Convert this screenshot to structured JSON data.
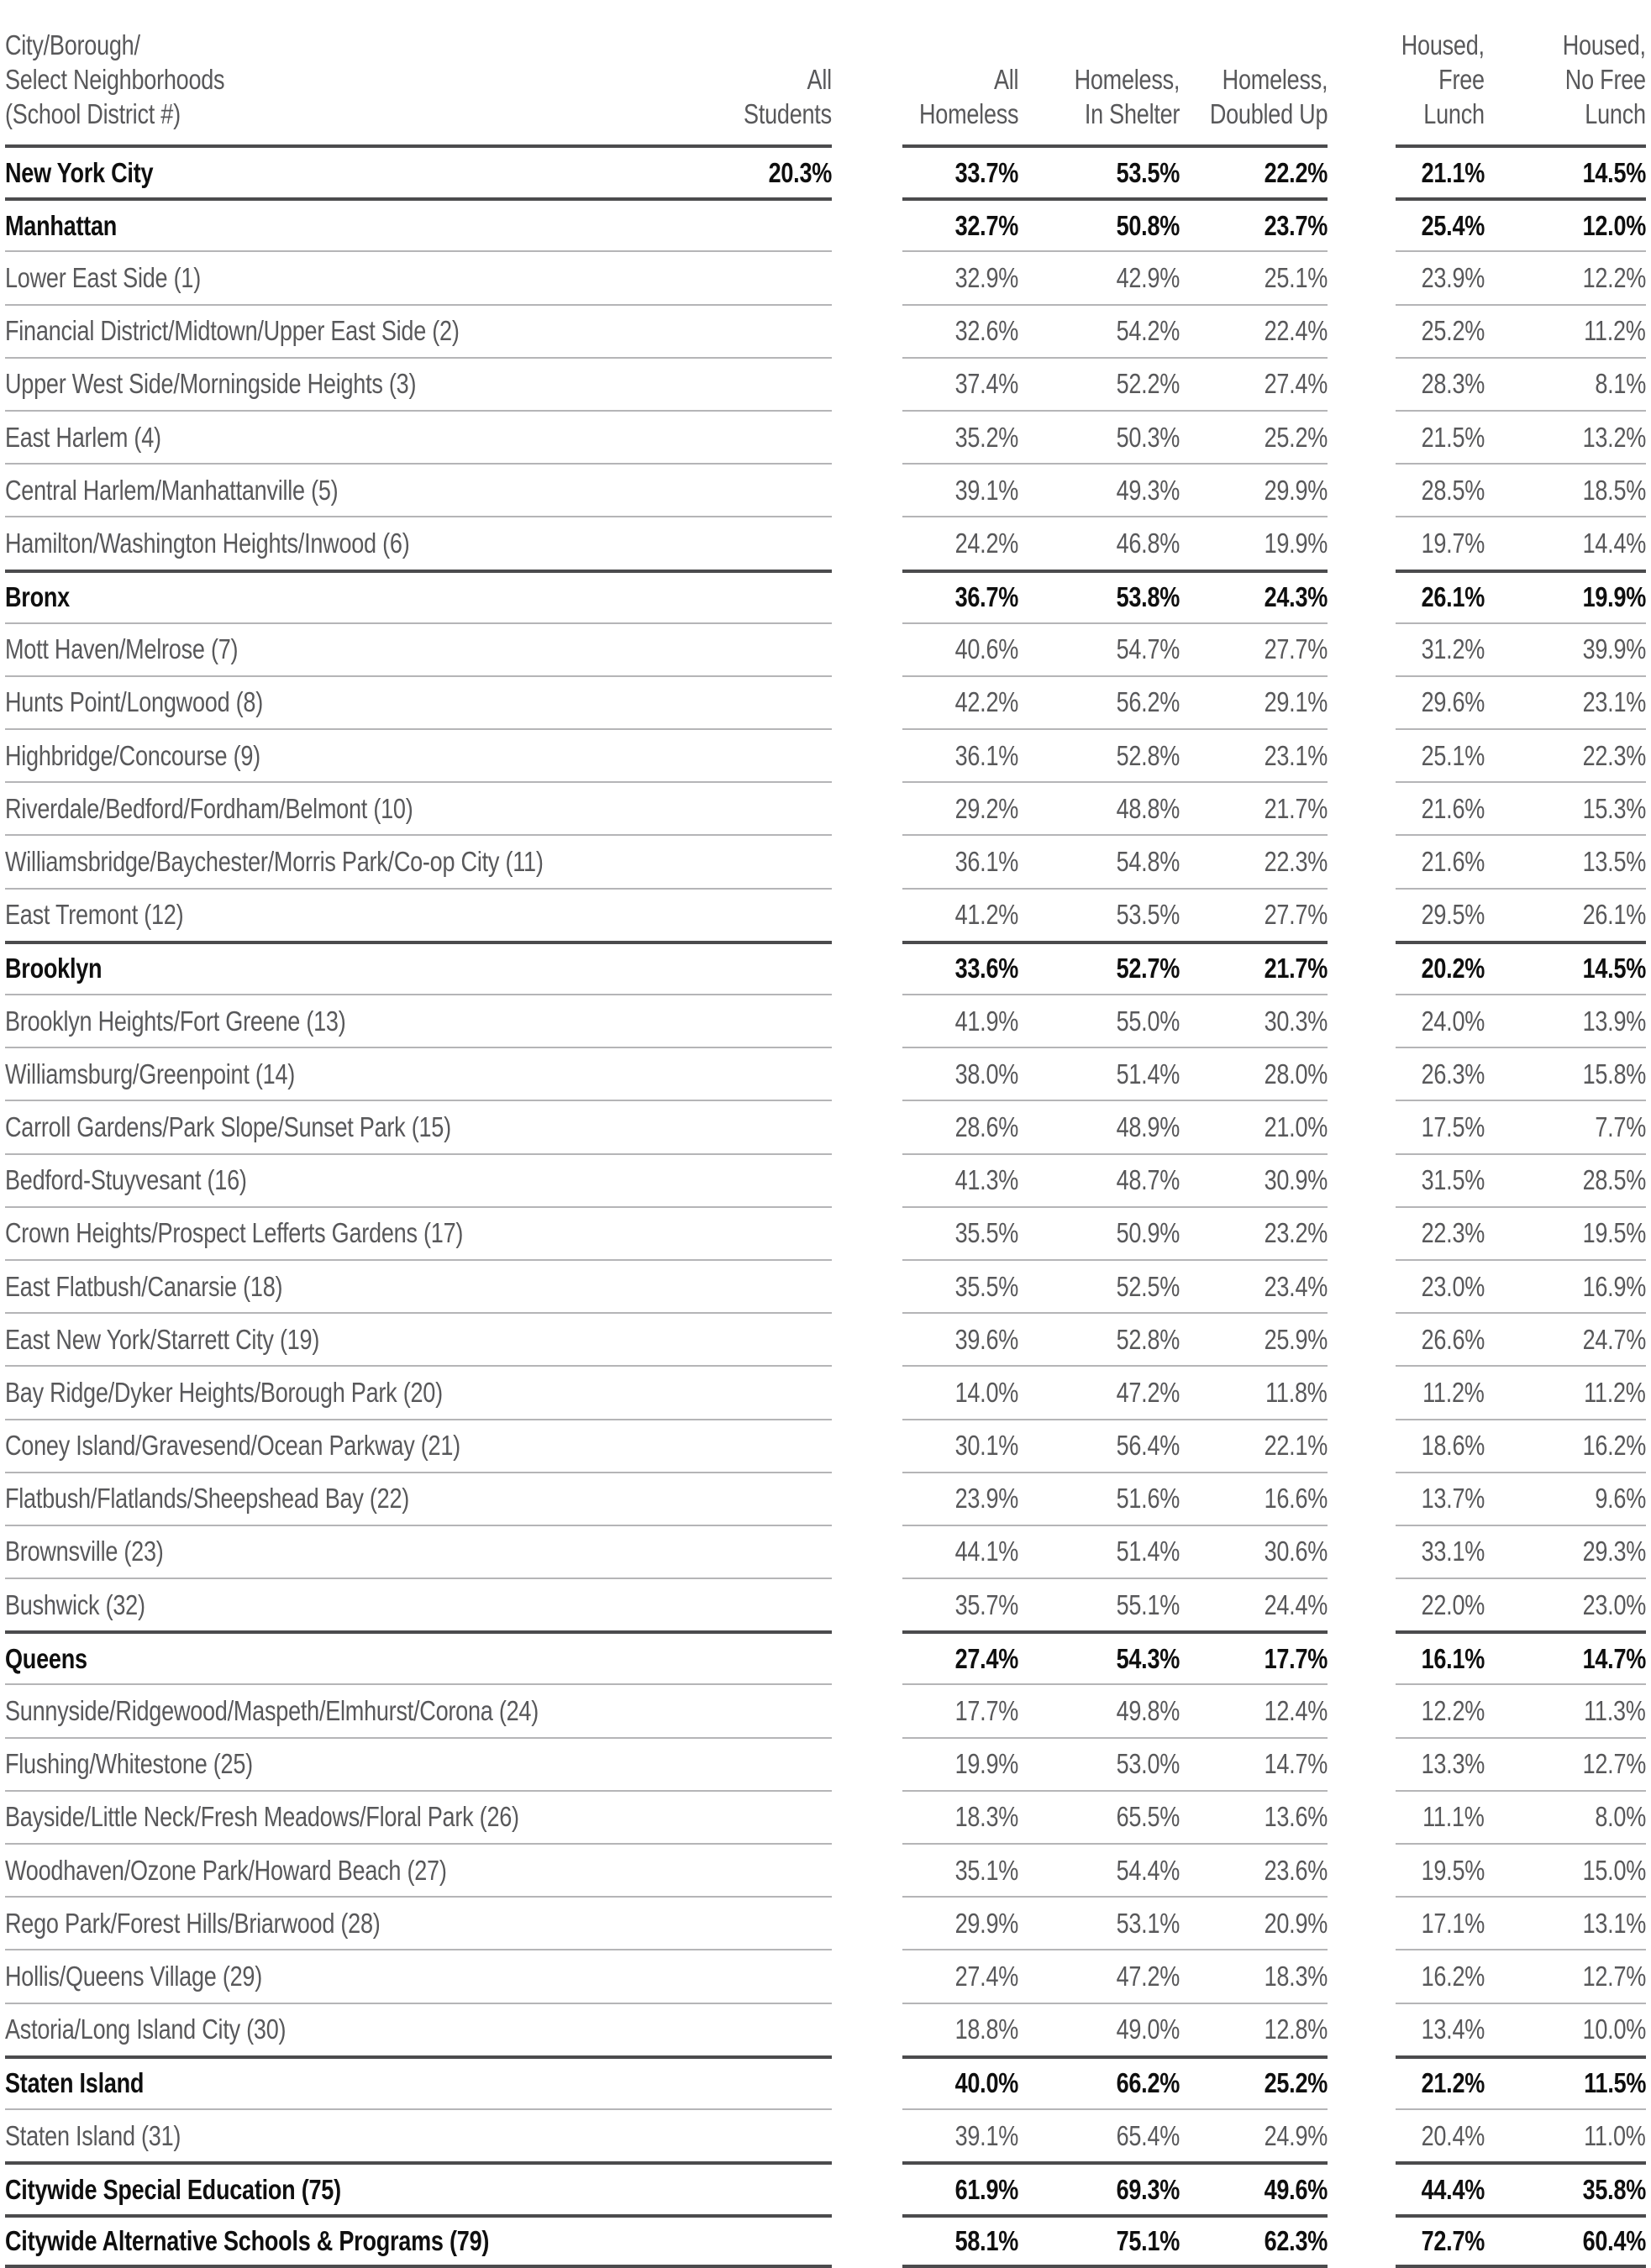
{
  "chart_data": {
    "type": "table",
    "header": {
      "label": "City/Borough/\nSelect Neighborhoods\n(School District #)",
      "all_students": "All\nStudents",
      "all_homeless": "All\nHomeless",
      "in_shelter": "Homeless,\nIn Shelter",
      "doubled_up": "Homeless,\nDoubled Up",
      "free_lunch": "Housed,\nFree\nLunch",
      "no_free_lunch": "Housed,\nNo Free\nLunch"
    },
    "columns": [
      "All Students",
      "All Homeless",
      "Homeless, In Shelter",
      "Homeless, Doubled Up",
      "Housed, Free Lunch",
      "Housed, No Free Lunch"
    ],
    "rows": [
      {
        "label": "New York City",
        "bold": true,
        "values": [
          "20.3%",
          "33.7%",
          "53.5%",
          "22.2%",
          "21.1%",
          "14.5%"
        ]
      },
      {
        "label": "Manhattan",
        "bold": true,
        "values": [
          "",
          "32.7%",
          "50.8%",
          "23.7%",
          "25.4%",
          "12.0%"
        ]
      },
      {
        "label": "Lower East Side (1)",
        "bold": false,
        "values": [
          "",
          "32.9%",
          "42.9%",
          "25.1%",
          "23.9%",
          "12.2%"
        ]
      },
      {
        "label": "Financial District/Midtown/Upper East Side (2)",
        "bold": false,
        "values": [
          "",
          "32.6%",
          "54.2%",
          "22.4%",
          "25.2%",
          "11.2%"
        ]
      },
      {
        "label": "Upper West Side/Morningside Heights (3)",
        "bold": false,
        "values": [
          "",
          "37.4%",
          "52.2%",
          "27.4%",
          "28.3%",
          "8.1%"
        ]
      },
      {
        "label": "East Harlem (4)",
        "bold": false,
        "values": [
          "",
          "35.2%",
          "50.3%",
          "25.2%",
          "21.5%",
          "13.2%"
        ]
      },
      {
        "label": "Central Harlem/Manhattanville (5)",
        "bold": false,
        "values": [
          "",
          "39.1%",
          "49.3%",
          "29.9%",
          "28.5%",
          "18.5%"
        ]
      },
      {
        "label": "Hamilton/Washington Heights/Inwood (6)",
        "bold": false,
        "values": [
          "",
          "24.2%",
          "46.8%",
          "19.9%",
          "19.7%",
          "14.4%"
        ]
      },
      {
        "label": "Bronx",
        "bold": true,
        "values": [
          "",
          "36.7%",
          "53.8%",
          "24.3%",
          "26.1%",
          "19.9%"
        ]
      },
      {
        "label": "Mott Haven/Melrose (7)",
        "bold": false,
        "values": [
          "",
          "40.6%",
          "54.7%",
          "27.7%",
          "31.2%",
          "39.9%"
        ]
      },
      {
        "label": "Hunts Point/Longwood (8)",
        "bold": false,
        "values": [
          "",
          "42.2%",
          "56.2%",
          "29.1%",
          "29.6%",
          "23.1%"
        ]
      },
      {
        "label": "Highbridge/Concourse (9)",
        "bold": false,
        "values": [
          "",
          "36.1%",
          "52.8%",
          "23.1%",
          "25.1%",
          "22.3%"
        ]
      },
      {
        "label": "Riverdale/Bedford/Fordham/Belmont (10)",
        "bold": false,
        "values": [
          "",
          "29.2%",
          "48.8%",
          "21.7%",
          "21.6%",
          "15.3%"
        ]
      },
      {
        "label": "Williamsbridge/Baychester/Morris Park/Co-op City (11)",
        "bold": false,
        "values": [
          "",
          "36.1%",
          "54.8%",
          "22.3%",
          "21.6%",
          "13.5%"
        ]
      },
      {
        "label": "East Tremont (12)",
        "bold": false,
        "values": [
          "",
          "41.2%",
          "53.5%",
          "27.7%",
          "29.5%",
          "26.1%"
        ]
      },
      {
        "label": "Brooklyn",
        "bold": true,
        "values": [
          "",
          "33.6%",
          "52.7%",
          "21.7%",
          "20.2%",
          "14.5%"
        ]
      },
      {
        "label": "Brooklyn Heights/Fort Greene (13)",
        "bold": false,
        "values": [
          "",
          "41.9%",
          "55.0%",
          "30.3%",
          "24.0%",
          "13.9%"
        ]
      },
      {
        "label": "Williamsburg/Greenpoint (14)",
        "bold": false,
        "values": [
          "",
          "38.0%",
          "51.4%",
          "28.0%",
          "26.3%",
          "15.8%"
        ]
      },
      {
        "label": "Carroll Gardens/Park Slope/Sunset Park (15)",
        "bold": false,
        "values": [
          "",
          "28.6%",
          "48.9%",
          "21.0%",
          "17.5%",
          "7.7%"
        ]
      },
      {
        "label": "Bedford-Stuyvesant (16)",
        "bold": false,
        "values": [
          "",
          "41.3%",
          "48.7%",
          "30.9%",
          "31.5%",
          "28.5%"
        ]
      },
      {
        "label": "Crown Heights/Prospect Lefferts Gardens (17)",
        "bold": false,
        "values": [
          "",
          "35.5%",
          "50.9%",
          "23.2%",
          "22.3%",
          "19.5%"
        ]
      },
      {
        "label": "East Flatbush/Canarsie (18)",
        "bold": false,
        "values": [
          "",
          "35.5%",
          "52.5%",
          "23.4%",
          "23.0%",
          "16.9%"
        ]
      },
      {
        "label": "East New York/Starrett City (19)",
        "bold": false,
        "values": [
          "",
          "39.6%",
          "52.8%",
          "25.9%",
          "26.6%",
          "24.7%"
        ]
      },
      {
        "label": "Bay Ridge/Dyker Heights/Borough Park (20)",
        "bold": false,
        "values": [
          "",
          "14.0%",
          "47.2%",
          "11.8%",
          "11.2%",
          "11.2%"
        ]
      },
      {
        "label": "Coney Island/Gravesend/Ocean Parkway (21)",
        "bold": false,
        "values": [
          "",
          "30.1%",
          "56.4%",
          "22.1%",
          "18.6%",
          "16.2%"
        ]
      },
      {
        "label": "Flatbush/Flatlands/Sheepshead Bay (22)",
        "bold": false,
        "values": [
          "",
          "23.9%",
          "51.6%",
          "16.6%",
          "13.7%",
          "9.6%"
        ]
      },
      {
        "label": "Brownsville (23)",
        "bold": false,
        "values": [
          "",
          "44.1%",
          "51.4%",
          "30.6%",
          "33.1%",
          "29.3%"
        ]
      },
      {
        "label": "Bushwick (32)",
        "bold": false,
        "values": [
          "",
          "35.7%",
          "55.1%",
          "24.4%",
          "22.0%",
          "23.0%"
        ]
      },
      {
        "label": "Queens",
        "bold": true,
        "values": [
          "",
          "27.4%",
          "54.3%",
          "17.7%",
          "16.1%",
          "14.7%"
        ]
      },
      {
        "label": "Sunnyside/Ridgewood/Maspeth/Elmhurst/Corona (24)",
        "bold": false,
        "values": [
          "",
          "17.7%",
          "49.8%",
          "12.4%",
          "12.2%",
          "11.3%"
        ]
      },
      {
        "label": "Flushing/Whitestone (25)",
        "bold": false,
        "values": [
          "",
          "19.9%",
          "53.0%",
          "14.7%",
          "13.3%",
          "12.7%"
        ]
      },
      {
        "label": "Bayside/Little Neck/Fresh Meadows/Floral Park (26)",
        "bold": false,
        "values": [
          "",
          "18.3%",
          "65.5%",
          "13.6%",
          "11.1%",
          "8.0%"
        ]
      },
      {
        "label": "Woodhaven/Ozone Park/Howard Beach (27)",
        "bold": false,
        "values": [
          "",
          "35.1%",
          "54.4%",
          "23.6%",
          "19.5%",
          "15.0%"
        ]
      },
      {
        "label": "Rego Park/Forest Hills/Briarwood (28)",
        "bold": false,
        "values": [
          "",
          "29.9%",
          "53.1%",
          "20.9%",
          "17.1%",
          "13.1%"
        ]
      },
      {
        "label": "Hollis/Queens Village (29)",
        "bold": false,
        "values": [
          "",
          "27.4%",
          "47.2%",
          "18.3%",
          "16.2%",
          "12.7%"
        ]
      },
      {
        "label": "Astoria/Long Island City (30)",
        "bold": false,
        "values": [
          "",
          "18.8%",
          "49.0%",
          "12.8%",
          "13.4%",
          "10.0%"
        ]
      },
      {
        "label": "Staten Island",
        "bold": true,
        "values": [
          "",
          "40.0%",
          "66.2%",
          "25.2%",
          "21.2%",
          "11.5%"
        ]
      },
      {
        "label": "Staten Island (31)",
        "bold": false,
        "values": [
          "",
          "39.1%",
          "65.4%",
          "24.9%",
          "20.4%",
          "11.0%"
        ]
      },
      {
        "label": "Citywide Special Education (75)",
        "bold": true,
        "values": [
          "",
          "61.9%",
          "69.3%",
          "49.6%",
          "44.4%",
          "35.8%"
        ]
      },
      {
        "label": "Citywide Alternative Schools & Programs (79)",
        "bold": true,
        "values": [
          "",
          "58.1%",
          "75.1%",
          "62.3%",
          "72.7%",
          "60.4%"
        ]
      }
    ],
    "colors": {
      "text_gray": "#58585a",
      "text_black": "#0f0f0f",
      "rule_light": "#b5b5b7",
      "rule_dark": "#4b4b4d"
    },
    "layout": {
      "column_groups": [
        "label+all-students",
        "homeless (3 cols)",
        "housed (2 cols)"
      ],
      "grid": "horizontal rules only, split per column group"
    }
  }
}
